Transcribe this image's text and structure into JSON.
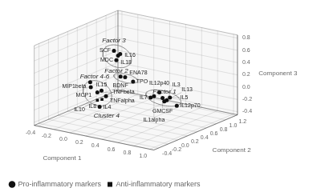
{
  "chart_data": {
    "type": "scatter3d",
    "xlabel": "Component 1",
    "ylabel": "Component 2",
    "zlabel": "Component 3",
    "xlim": [
      -0.45,
      1.05
    ],
    "ylim": [
      -0.5,
      1.25
    ],
    "zlim": [
      -0.45,
      0.85
    ],
    "xticks": [
      -0.4,
      -0.2,
      {
        "value": 0.0,
        "label": "0.0"
      },
      0.2,
      0.4,
      0.6,
      0.8,
      {
        "value": 1.0,
        "label": "1.0"
      }
    ],
    "yticks": [
      1.2,
      {
        "value": 1.0,
        "label": "1.0"
      },
      0.8,
      0.6,
      0.4,
      0.2,
      {
        "value": 0.0,
        "label": "0.0"
      },
      -0.2,
      -0.4
    ],
    "zticks": [
      -0.4,
      -0.2,
      {
        "value": 0.0,
        "label": "0.0"
      },
      0.2,
      0.4,
      0.6,
      0.8
    ],
    "grid": true,
    "legend": "lower left",
    "series": [
      {
        "name": "Pro-inflammatory markers",
        "color": "#111111",
        "marker": "circle",
        "labels": [
          "SCF",
          "IL16",
          "IL18",
          "MDC",
          "ENA78",
          "BDNF",
          "TPO",
          "MIP1beta",
          "MCP1",
          "IL15",
          "TNFbeta",
          "TNFalpha",
          "IL8",
          "IL12p40",
          "IL5",
          "GMCSF",
          "IL1alpha",
          "IL7",
          "IL3",
          "IL13",
          "IL12p70"
        ],
        "x": [
          -0.08,
          0.05,
          0.1,
          -0.02,
          -0.12,
          -0.22,
          -0.05,
          -0.18,
          -0.22,
          -0.05,
          -0.15,
          0.0,
          -0.05,
          0.52,
          0.7,
          0.56,
          0.44,
          0.38,
          0.63,
          0.57,
          0.75
        ],
        "y": [
          0.55,
          0.42,
          0.38,
          0.5,
          0.85,
          0.92,
          0.9,
          0.22,
          0.3,
          0.24,
          0.32,
          0.25,
          0.2,
          0.5,
          0.42,
          0.5,
          0.52,
          0.55,
          0.47,
          0.52,
          0.48
        ],
        "z": [
          0.52,
          0.52,
          0.57,
          0.4,
          -0.02,
          -0.06,
          -0.09,
          0.09,
          -0.03,
          -0.02,
          -0.1,
          -0.1,
          -0.27,
          0.02,
          0.01,
          -0.06,
          -0.07,
          -0.12,
          -0.07,
          -0.12,
          -0.13
        ]
      },
      {
        "name": "Anti-inflammatory markers",
        "color": "#111111",
        "marker": "square",
        "labels": [
          "IL4",
          "IL10"
        ],
        "x": [
          -0.08,
          -0.15
        ],
        "y": [
          0.3,
          0.32
        ],
        "z": [
          -0.19,
          -0.23
        ]
      }
    ],
    "annotations": [
      {
        "text": "Factor 3",
        "x": 0.04,
        "y": 0.35,
        "z": 0.78
      },
      {
        "text": "Factor 2",
        "x": -0.2,
        "y": 0.8,
        "z": 0.08
      },
      {
        "text": "Factor 4-6",
        "x": -0.1,
        "y": 0.18,
        "z": 0.22
      },
      {
        "text": "Factor 1",
        "x": 0.68,
        "y": 0.34,
        "z": 0.12
      },
      {
        "text": "Cluster 4",
        "x": 0.05,
        "y": 0.18,
        "z": -0.38
      }
    ],
    "ellipses": [
      {
        "cx": 0.02,
        "cy": 0.45,
        "cz": 0.49,
        "rx": 0.18,
        "rz": 0.18,
        "color": "#888888"
      },
      {
        "cx": -0.13,
        "cy": 0.88,
        "cz": -0.05,
        "rx": 0.15,
        "rz": 0.07,
        "color": "#888888"
      },
      {
        "cx": -0.12,
        "cy": 0.27,
        "cz": -0.09,
        "rx": 0.18,
        "rz": 0.2,
        "color": "#888888"
      },
      {
        "cx": 0.57,
        "cy": 0.5,
        "cz": -0.06,
        "rx": 0.22,
        "rz": 0.12,
        "color": "#888888"
      }
    ]
  }
}
